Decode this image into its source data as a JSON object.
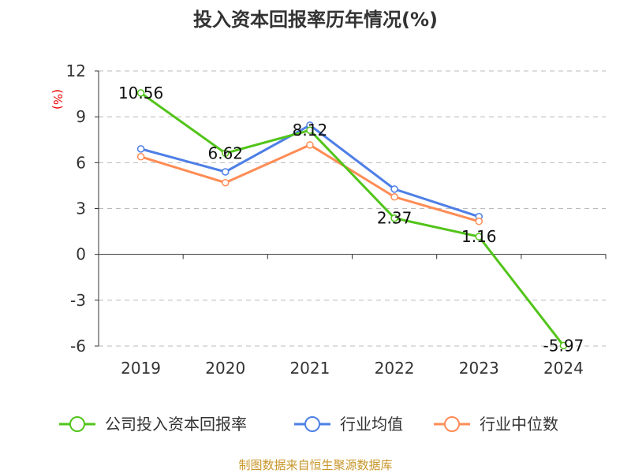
{
  "chart_data": {
    "type": "line",
    "title": "投入资本回报率历年情况(%)",
    "ylabel": "(%)",
    "categories": [
      "2019",
      "2020",
      "2021",
      "2022",
      "2023",
      "2024"
    ],
    "ylim": [
      -6,
      12
    ],
    "yticks": [
      "12",
      "9",
      "6",
      "3",
      "0",
      "-3",
      "-6"
    ],
    "yticks_values": [
      12,
      9,
      6,
      3,
      0,
      -3,
      -6
    ],
    "grid": true,
    "legend_position": "bottom",
    "series": [
      {
        "name": "公司投入资本回报率",
        "color": "#52c41a",
        "values": [
          10.56,
          6.62,
          8.12,
          2.37,
          1.16,
          -5.97
        ],
        "labels": [
          "10.56",
          "6.62",
          "8.12",
          "2.37",
          "1.16",
          "-5.97"
        ]
      },
      {
        "name": "行业均值",
        "color": "#4e7fe6",
        "values": [
          6.9,
          5.4,
          8.45,
          4.27,
          2.47,
          null
        ]
      },
      {
        "name": "行业中位数",
        "color": "#ff8c55",
        "values": [
          6.39,
          4.69,
          7.16,
          3.76,
          2.16,
          null
        ]
      }
    ],
    "source": "制图数据来自恒生聚源数据库"
  }
}
